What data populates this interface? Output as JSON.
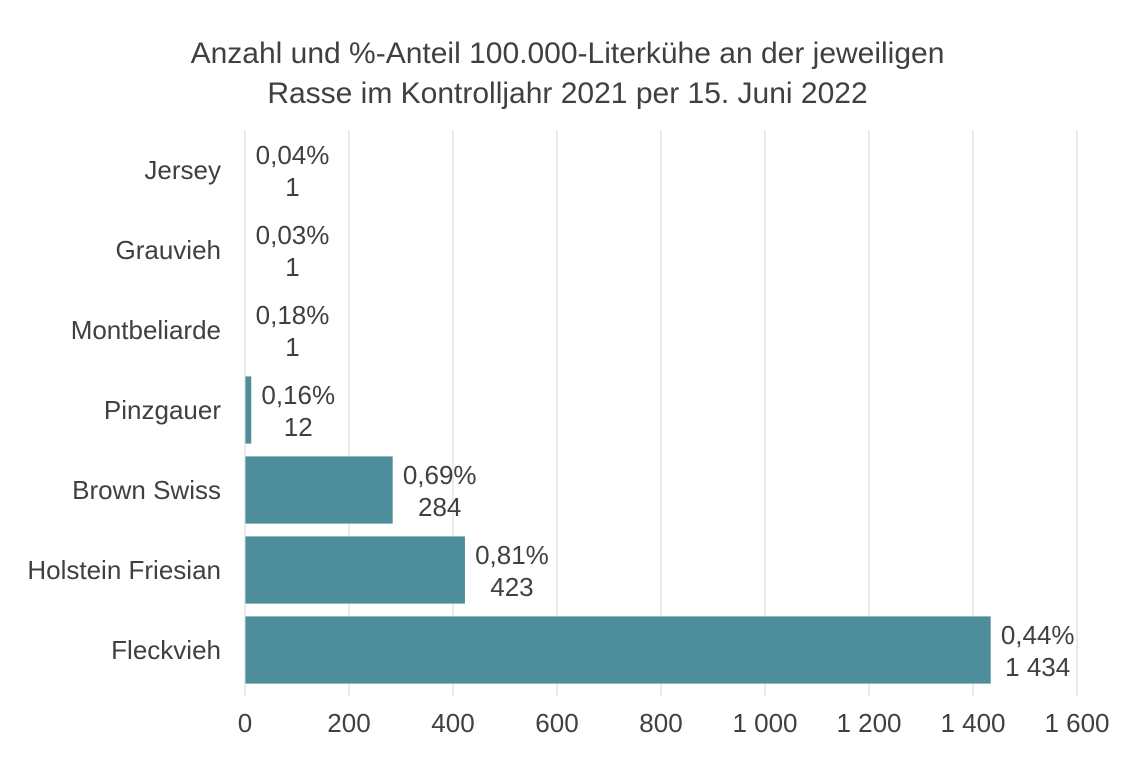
{
  "chart_data": {
    "type": "bar",
    "orientation": "horizontal",
    "title_lines": [
      "Anzahl und %-Anteil 100.000-Literkühe an der jeweiligen",
      "Rasse im Kontrolljahr 2021 per 15. Juni 2022"
    ],
    "categories": [
      "Jersey",
      "Grauvieh",
      "Montbeliarde",
      "Pinzgauer",
      "Brown Swiss",
      "Holstein Friesian",
      "Fleckvieh"
    ],
    "values": [
      1,
      1,
      1,
      12,
      284,
      423,
      1434
    ],
    "value_labels": [
      "1",
      "1",
      "1",
      "12",
      "284",
      "423",
      "1 434"
    ],
    "percent_labels": [
      "0,04%",
      "0,03%",
      "0,18%",
      "0,16%",
      "0,69%",
      "0,81%",
      "0,44%"
    ],
    "xlim": [
      0,
      1600
    ],
    "x_ticks": [
      0,
      200,
      400,
      600,
      800,
      1000,
      1200,
      1400,
      1600
    ],
    "x_tick_labels": [
      "0",
      "200",
      "400",
      "600",
      "800",
      "1 000",
      "1 200",
      "1 400",
      "1 600"
    ],
    "xlabel": "",
    "ylabel": "",
    "grid": "vertical",
    "legend": "none",
    "bar_color": "#4D8E9A",
    "grid_color": "#D9D9D9",
    "axis_color": "#D9D9D9"
  }
}
